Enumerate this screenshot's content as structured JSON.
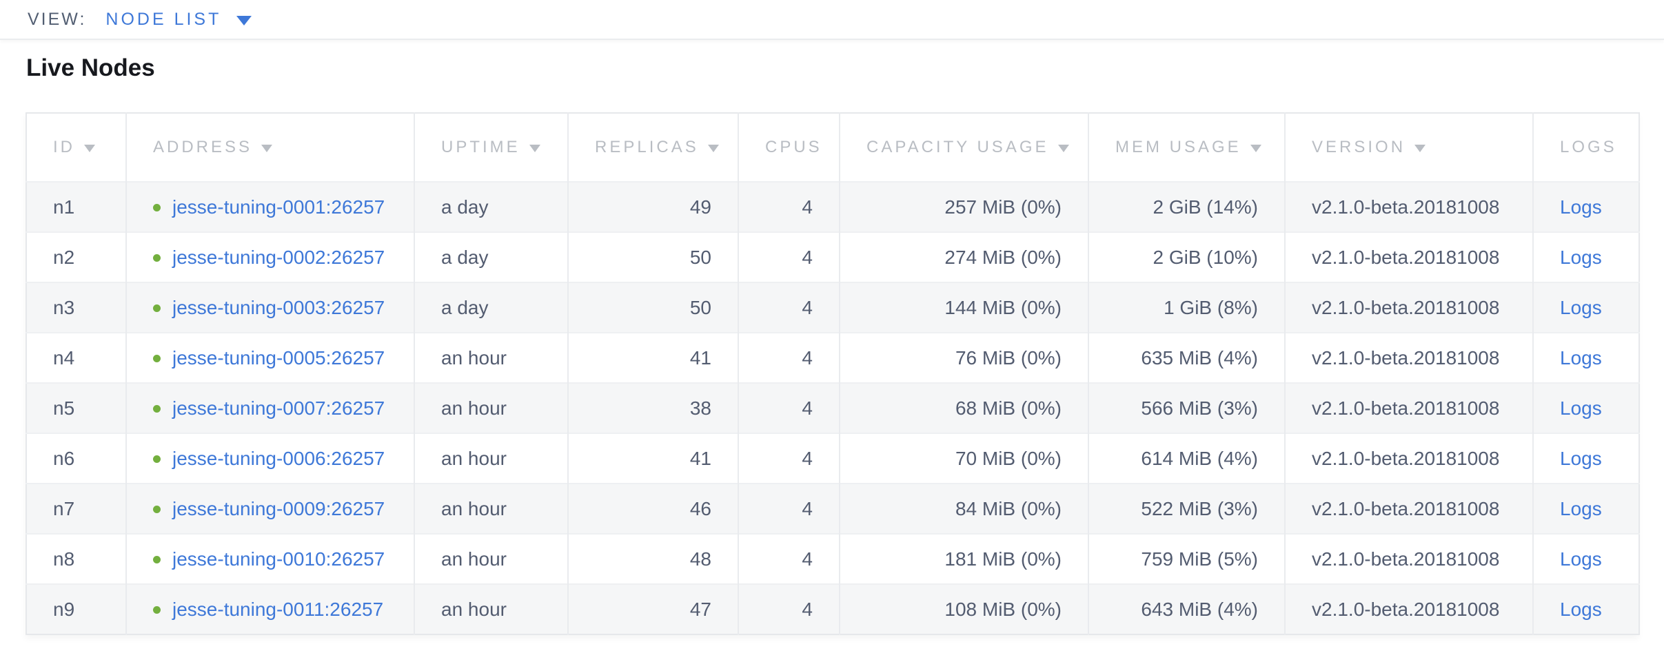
{
  "view_bar": {
    "label": "VIEW:",
    "selected": "NODE LIST"
  },
  "page": {
    "title": "Live Nodes"
  },
  "colors": {
    "link_blue": "#3e78d8",
    "live_green": "#73af3e",
    "header_gray": "#b9bdc3",
    "text_slate": "#535c70",
    "view_label_gray": "#525e72"
  },
  "table": {
    "columns": [
      {
        "key": "id",
        "label": "ID",
        "sortable": true,
        "align": "left"
      },
      {
        "key": "address",
        "label": "ADDRESS",
        "sortable": true,
        "align": "left"
      },
      {
        "key": "uptime",
        "label": "UPTIME",
        "sortable": true,
        "align": "left"
      },
      {
        "key": "replicas",
        "label": "REPLICAS",
        "sortable": true,
        "align": "right"
      },
      {
        "key": "cpus",
        "label": "CPUS",
        "sortable": false,
        "align": "right"
      },
      {
        "key": "capacity",
        "label": "CAPACITY USAGE",
        "sortable": true,
        "align": "right"
      },
      {
        "key": "mem",
        "label": "MEM USAGE",
        "sortable": true,
        "align": "right"
      },
      {
        "key": "version",
        "label": "VERSION",
        "sortable": true,
        "align": "left"
      },
      {
        "key": "logs",
        "label": "LOGS",
        "sortable": false,
        "align": "left"
      }
    ],
    "rows": [
      {
        "id": "n1",
        "status": "live",
        "address": "jesse-tuning-0001:26257",
        "uptime": "a day",
        "replicas": "49",
        "cpus": "4",
        "capacity": "257 MiB (0%)",
        "mem": "2 GiB (14%)",
        "version": "v2.1.0-beta.20181008",
        "logs": "Logs"
      },
      {
        "id": "n2",
        "status": "live",
        "address": "jesse-tuning-0002:26257",
        "uptime": "a day",
        "replicas": "50",
        "cpus": "4",
        "capacity": "274 MiB (0%)",
        "mem": "2 GiB (10%)",
        "version": "v2.1.0-beta.20181008",
        "logs": "Logs"
      },
      {
        "id": "n3",
        "status": "live",
        "address": "jesse-tuning-0003:26257",
        "uptime": "a day",
        "replicas": "50",
        "cpus": "4",
        "capacity": "144 MiB (0%)",
        "mem": "1 GiB (8%)",
        "version": "v2.1.0-beta.20181008",
        "logs": "Logs"
      },
      {
        "id": "n4",
        "status": "live",
        "address": "jesse-tuning-0005:26257",
        "uptime": "an hour",
        "replicas": "41",
        "cpus": "4",
        "capacity": "76 MiB (0%)",
        "mem": "635 MiB (4%)",
        "version": "v2.1.0-beta.20181008",
        "logs": "Logs"
      },
      {
        "id": "n5",
        "status": "live",
        "address": "jesse-tuning-0007:26257",
        "uptime": "an hour",
        "replicas": "38",
        "cpus": "4",
        "capacity": "68 MiB (0%)",
        "mem": "566 MiB (3%)",
        "version": "v2.1.0-beta.20181008",
        "logs": "Logs"
      },
      {
        "id": "n6",
        "status": "live",
        "address": "jesse-tuning-0006:26257",
        "uptime": "an hour",
        "replicas": "41",
        "cpus": "4",
        "capacity": "70 MiB (0%)",
        "mem": "614 MiB (4%)",
        "version": "v2.1.0-beta.20181008",
        "logs": "Logs"
      },
      {
        "id": "n7",
        "status": "live",
        "address": "jesse-tuning-0009:26257",
        "uptime": "an hour",
        "replicas": "46",
        "cpus": "4",
        "capacity": "84 MiB (0%)",
        "mem": "522 MiB (3%)",
        "version": "v2.1.0-beta.20181008",
        "logs": "Logs"
      },
      {
        "id": "n8",
        "status": "live",
        "address": "jesse-tuning-0010:26257",
        "uptime": "an hour",
        "replicas": "48",
        "cpus": "4",
        "capacity": "181 MiB (0%)",
        "mem": "759 MiB (5%)",
        "version": "v2.1.0-beta.20181008",
        "logs": "Logs"
      },
      {
        "id": "n9",
        "status": "live",
        "address": "jesse-tuning-0011:26257",
        "uptime": "an hour",
        "replicas": "47",
        "cpus": "4",
        "capacity": "108 MiB (0%)",
        "mem": "643 MiB (4%)",
        "version": "v2.1.0-beta.20181008",
        "logs": "Logs"
      }
    ]
  }
}
